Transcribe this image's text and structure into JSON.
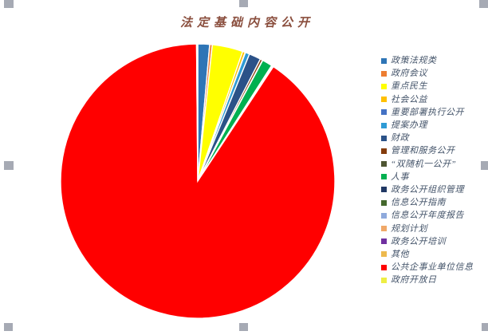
{
  "chart_data": {
    "type": "pie",
    "title": "法定基础内容公开",
    "legend_position": "right",
    "start_angle_deg": 0,
    "direction": "clockwise",
    "slice_border_color": "#FFFFFF",
    "slices": [
      {
        "label": "政策法规类",
        "percent": 1.39,
        "color": "#2E75B6"
      },
      {
        "label": "政府会议",
        "percent": 0.31,
        "color": "#ED7D31"
      },
      {
        "label": "重点民生",
        "percent": 3.61,
        "color": "#FFFF00"
      },
      {
        "label": "社会公益",
        "percent": 0.31,
        "color": "#FFC000"
      },
      {
        "label": "重要部署执行公开",
        "percent": 0.04,
        "color": "#4472C4"
      },
      {
        "label": "提案办理",
        "percent": 0.5,
        "color": "#2E9BD5"
      },
      {
        "label": "财政",
        "percent": 1.39,
        "color": "#2B5288"
      },
      {
        "label": "管理和服务公开",
        "percent": 0.28,
        "color": "#843C0C"
      },
      {
        "label": "“双随机一公开”",
        "percent": 0.04,
        "color": "#4E5532"
      },
      {
        "label": "人事",
        "percent": 1.19,
        "color": "#00B050"
      },
      {
        "label": "政务公开组织管理",
        "percent": 0.04,
        "color": "#203864"
      },
      {
        "label": "信息公开指南",
        "percent": 0.04,
        "color": "#44682D"
      },
      {
        "label": "信息公开年度报告",
        "percent": 0.04,
        "color": "#8FAADC"
      },
      {
        "label": "规划计划",
        "percent": 0.04,
        "color": "#F0A868"
      },
      {
        "label": "政务公开培训",
        "percent": 0.04,
        "color": "#7030A0"
      },
      {
        "label": "其他",
        "percent": 0.04,
        "color": "#EDB94E"
      },
      {
        "label": "公共企事业单位信息",
        "percent": 90.56,
        "color": "#FF0000"
      },
      {
        "label": "政府开放日",
        "percent": 0.14,
        "color": "#EEEE44"
      }
    ]
  },
  "styles": {
    "title_color": "#8A4E3D",
    "legend_text_color": "#44546A",
    "selection_handle_color": "#A6AAB4"
  }
}
